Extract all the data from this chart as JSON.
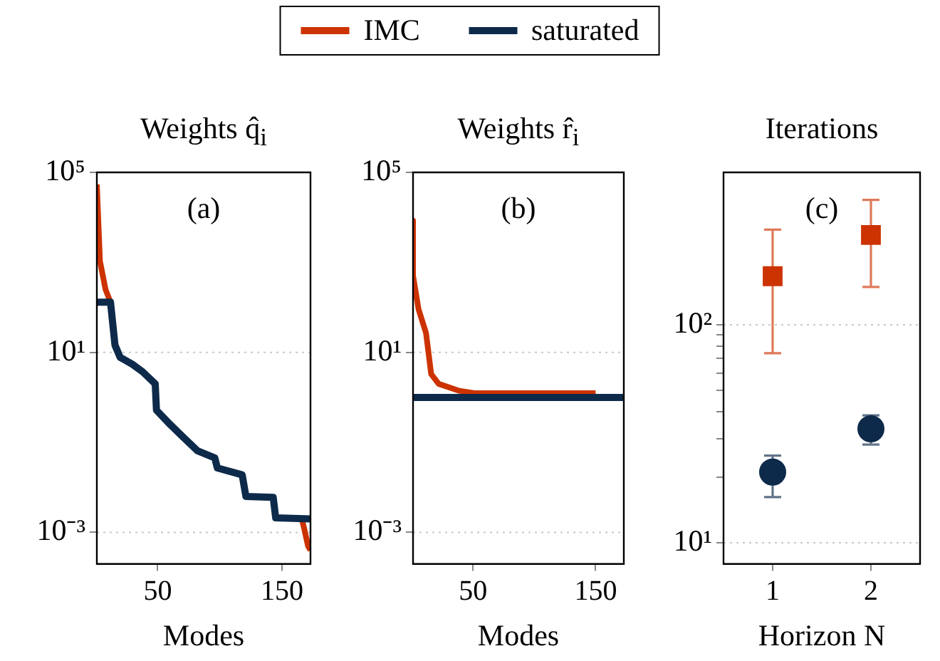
{
  "chart_data": [
    {
      "type": "line",
      "title": "Weights q̂$_{i}$",
      "xlabel": "Modes",
      "annotations": [
        "(a)"
      ],
      "xlim": [
        1,
        173
      ],
      "xticks": [
        50,
        150
      ],
      "log": "y",
      "ylim": [
        0.0002,
        100000
      ],
      "yticks": [
        {
          "value": 100000,
          "label": "10⁵"
        },
        {
          "value": 10,
          "label": "10¹"
        },
        {
          "value": 0.001,
          "label": "10⁻³"
        }
      ],
      "grid": "y",
      "legend": "top",
      "marker": "none",
      "line_style": "solid",
      "series": [
        {
          "name": "IMC",
          "color": "#cc3300",
          "x": [
            1,
            3.5,
            8,
            12,
            100,
            166,
            168,
            171,
            173
          ],
          "values": [
            54000,
            1070,
            250,
            130,
            null,
            0.002,
            0.0012,
            0.0005,
            0.0004
          ]
        },
        {
          "name": "saturated",
          "color": "#0d2a4a",
          "x": [
            1,
            12,
            15.6,
            19.7,
            29.8,
            37.9,
            48,
            49,
            60,
            70,
            82,
            96,
            98,
            118,
            121,
            143,
            145,
            173
          ],
          "values": [
            130,
            130,
            14.5,
            7.8,
            5.4,
            3.7,
            2.0,
            0.52,
            0.25,
            0.135,
            0.065,
            0.045,
            0.027,
            0.019,
            0.0063,
            0.006,
            0.0021,
            0.002
          ]
        }
      ]
    },
    {
      "type": "line",
      "title": "Weights r̂$_{i}$",
      "xlabel": "Modes",
      "annotations": [
        "(b)"
      ],
      "xlim": [
        1,
        173
      ],
      "xticks": [
        50,
        150
      ],
      "log": "y",
      "ylim": [
        0.0002,
        100000
      ],
      "yticks": [
        {
          "value": 100000,
          "label": "10⁵"
        },
        {
          "value": 10,
          "label": "10¹"
        },
        {
          "value": 0.001,
          "label": "10⁻³"
        }
      ],
      "grid": "y",
      "legend": "top",
      "marker": "none",
      "line_style": "solid",
      "series": [
        {
          "name": "IMC",
          "color": "#cc3300",
          "x": [
            1,
            1,
            5.5,
            11.6,
            15.8,
            21.9,
            38.8,
            51,
            150
          ],
          "values": [
            8500,
            510,
            91,
            27,
            3.3,
            2.0,
            1.4,
            1.24,
            1.24
          ]
        },
        {
          "name": "saturated",
          "color": "#0d2a4a",
          "x": [
            1,
            173
          ],
          "values": [
            1,
            1
          ]
        }
      ]
    },
    {
      "type": "scatter",
      "title": "Iterations",
      "xlabel": "Horizon N",
      "annotations": [
        "(c)"
      ],
      "xlim": [
        0.5,
        2.5
      ],
      "xticks": [
        1,
        2
      ],
      "log": "y",
      "ylim": [
        8,
        500
      ],
      "yticks": [
        {
          "value": 10,
          "label": "10¹"
        },
        {
          "value": 20,
          "label": null
        },
        {
          "value": 30,
          "label": null
        },
        {
          "value": 40,
          "label": null
        },
        {
          "value": 50,
          "label": null
        },
        {
          "value": 60,
          "label": null
        },
        {
          "value": 70,
          "label": null
        },
        {
          "value": 80,
          "label": null
        },
        {
          "value": 90,
          "label": null
        },
        {
          "value": 100,
          "label": "10²"
        }
      ],
      "grid": "y",
      "legend": "top",
      "series": [
        {
          "name": "IMC",
          "color": "#cc3300",
          "marker": "square",
          "x": [
            1,
            2
          ],
          "values": [
            167,
            258
          ],
          "errors": [
            [
              74,
              273
            ],
            [
              149,
              374
            ]
          ]
        },
        {
          "name": "saturated",
          "color": "#0d2a4a",
          "marker": "circle",
          "x": [
            1,
            2
          ],
          "values": [
            21.1,
            33.3
          ],
          "errors": [
            [
              16.2,
              25.1
            ],
            [
              28.2,
              38.4
            ]
          ]
        }
      ]
    }
  ]
}
